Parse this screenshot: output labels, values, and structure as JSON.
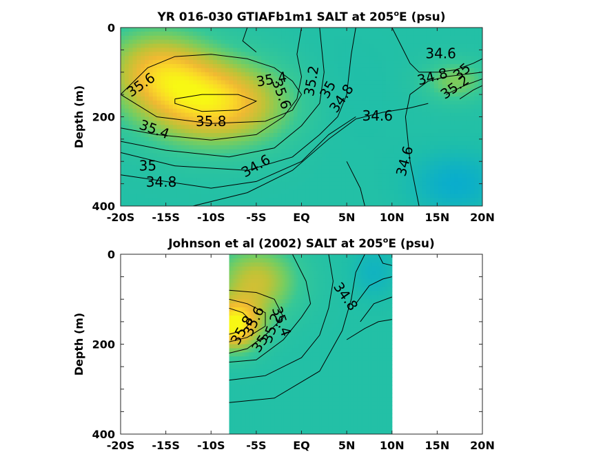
{
  "chart_data": [
    {
      "type": "heatmap",
      "title_main": "YR 016-030 GTIAFb1m1 SALT at 205",
      "title_sup": "o",
      "title_tail": "E (psu)",
      "ylabel": "Depth (m)",
      "xlabel": "",
      "xlim": [
        -20,
        20
      ],
      "ylim": [
        0,
        400
      ],
      "x_ticks": [
        {
          "value": -20,
          "label": "-20S"
        },
        {
          "value": -15,
          "label": "-15S"
        },
        {
          "value": -10,
          "label": "-10S"
        },
        {
          "value": -5,
          "label": "-5S"
        },
        {
          "value": 0,
          "label": "EQ"
        },
        {
          "value": 5,
          "label": "5N"
        },
        {
          "value": 10,
          "label": "10N"
        },
        {
          "value": 15,
          "label": "15N"
        },
        {
          "value": 20,
          "label": "20N"
        }
      ],
      "y_ticks": [
        {
          "value": 0,
          "label": "0"
        },
        {
          "value": 200,
          "label": "200"
        },
        {
          "value": 400,
          "label": "400"
        }
      ],
      "data_extent": [
        -20,
        20
      ],
      "salinity_blobs": [
        {
          "lat": -9.5,
          "depth": 170,
          "value": 35.85,
          "spread_lat": 8,
          "spread_depth": 95
        },
        {
          "lat": -16,
          "depth": 90,
          "value": 35.55,
          "spread_lat": 6,
          "spread_depth": 90
        },
        {
          "lat": 4,
          "depth": 150,
          "value": 34.72,
          "spread_lat": 6,
          "spread_depth": 130
        },
        {
          "lat": 17,
          "depth": 120,
          "value": 35.25,
          "spread_lat": 3.5,
          "spread_depth": 45
        },
        {
          "lat": 17,
          "depth": 350,
          "value": 34.45,
          "spread_lat": 5,
          "spread_depth": 70
        }
      ],
      "contour_labels": [
        {
          "text": "35.6",
          "lat": -17.7,
          "depth": 130,
          "rotate": -35
        },
        {
          "text": "35.8",
          "lat": -10,
          "depth": 212,
          "rotate": 0
        },
        {
          "text": "35.4",
          "lat": -16.3,
          "depth": 230,
          "rotate": 20
        },
        {
          "text": "35",
          "lat": -17,
          "depth": 312,
          "rotate": 0
        },
        {
          "text": "34.8",
          "lat": -15.5,
          "depth": 348,
          "rotate": 0
        },
        {
          "text": "35.4",
          "lat": -3.3,
          "depth": 118,
          "rotate": -10
        },
        {
          "text": "35.6",
          "lat": -2.3,
          "depth": 150,
          "rotate": 70
        },
        {
          "text": "35.2",
          "lat": 1.2,
          "depth": 120,
          "rotate": -80
        },
        {
          "text": "35",
          "lat": 3,
          "depth": 140,
          "rotate": -60
        },
        {
          "text": "34.8",
          "lat": 4.5,
          "depth": 160,
          "rotate": -55
        },
        {
          "text": "34.6",
          "lat": -5,
          "depth": 312,
          "rotate": -30
        },
        {
          "text": "34.6",
          "lat": 8.4,
          "depth": 200,
          "rotate": 0
        },
        {
          "text": "34.6",
          "lat": 15.4,
          "depth": 60,
          "rotate": 0
        },
        {
          "text": "34.8",
          "lat": 14.5,
          "depth": 112,
          "rotate": -15
        },
        {
          "text": "35",
          "lat": 17.8,
          "depth": 100,
          "rotate": -40
        },
        {
          "text": "35.2",
          "lat": 17,
          "depth": 135,
          "rotate": -35
        },
        {
          "text": "34.6",
          "lat": 11.5,
          "depth": 300,
          "rotate": -75
        }
      ],
      "contour_lines": [
        [
          [
            -20,
            150
          ],
          [
            -17,
            90
          ],
          [
            -14,
            65
          ],
          [
            -10,
            60
          ],
          [
            -6,
            70
          ],
          [
            -3,
            90
          ],
          [
            -1,
            120
          ],
          [
            0,
            150
          ],
          [
            -1,
            185
          ],
          [
            -4,
            210
          ],
          [
            -10,
            215
          ],
          [
            -16,
            200
          ],
          [
            -20,
            150
          ]
        ],
        [
          [
            -14,
            160
          ],
          [
            -11,
            150
          ],
          [
            -7,
            150
          ],
          [
            -5,
            165
          ],
          [
            -7,
            185
          ],
          [
            -11,
            188
          ],
          [
            -14,
            170
          ],
          [
            -14,
            160
          ]
        ],
        [
          [
            -20,
            225
          ],
          [
            -16,
            240
          ],
          [
            -10,
            252
          ],
          [
            -5,
            240
          ],
          [
            -2,
            200
          ],
          [
            -0.5,
            160
          ],
          [
            0,
            110
          ],
          [
            -0.5,
            60
          ],
          [
            0,
            0
          ]
        ],
        [
          [
            -20,
            255
          ],
          [
            -15,
            275
          ],
          [
            -8,
            290
          ],
          [
            -3,
            270
          ],
          [
            0,
            220
          ],
          [
            2,
            170
          ],
          [
            2.5,
            100
          ],
          [
            2,
            0
          ]
        ],
        [
          [
            -20,
            280
          ],
          [
            -14,
            310
          ],
          [
            -6,
            320
          ],
          [
            -1,
            290
          ],
          [
            2,
            240
          ],
          [
            4,
            200
          ],
          [
            5,
            150
          ],
          [
            5.5,
            60
          ],
          [
            6,
            0
          ]
        ],
        [
          [
            -20,
            330
          ],
          [
            -15,
            345
          ],
          [
            -10,
            360
          ],
          [
            -5,
            345
          ],
          [
            0,
            300
          ],
          [
            3,
            240
          ],
          [
            6,
            200
          ]
        ],
        [
          [
            -12,
            400
          ],
          [
            -6,
            370
          ],
          [
            -1,
            320
          ],
          [
            3,
            250
          ],
          [
            6,
            205
          ],
          [
            9,
            190
          ],
          [
            12,
            180
          ],
          [
            14,
            170
          ]
        ],
        [
          [
            10,
            0
          ],
          [
            11,
            40
          ],
          [
            12,
            80
          ],
          [
            13,
            100
          ],
          [
            15,
            100
          ],
          [
            17,
            95
          ],
          [
            19,
            80
          ],
          [
            20,
            70
          ]
        ],
        [
          [
            13,
            400
          ],
          [
            12,
            300
          ],
          [
            11.5,
            200
          ],
          [
            12,
            150
          ],
          [
            14,
            120
          ],
          [
            16,
            110
          ],
          [
            18,
            105
          ],
          [
            20,
            100
          ]
        ],
        [
          [
            16,
            150
          ],
          [
            18,
            130
          ],
          [
            20,
            115
          ]
        ],
        [
          [
            17.5,
            160
          ],
          [
            19,
            140
          ],
          [
            20,
            130
          ]
        ],
        [
          [
            -6,
            0
          ],
          [
            -6.5,
            30
          ],
          [
            -5,
            55
          ]
        ],
        [
          [
            5,
            300
          ],
          [
            6.5,
            360
          ],
          [
            7,
            400
          ]
        ]
      ]
    },
    {
      "type": "heatmap",
      "title_main": "Johnson et al (2002) SALT at 205",
      "title_sup": "o",
      "title_tail": "E (psu)",
      "ylabel": "Depth (m)",
      "xlabel": "",
      "xlim": [
        -20,
        20
      ],
      "ylim": [
        0,
        400
      ],
      "x_ticks": [
        {
          "value": -20,
          "label": "-20S"
        },
        {
          "value": -15,
          "label": "-15S"
        },
        {
          "value": -10,
          "label": "-10S"
        },
        {
          "value": -5,
          "label": "-5S"
        },
        {
          "value": 0,
          "label": "EQ"
        },
        {
          "value": 5,
          "label": "5N"
        },
        {
          "value": 10,
          "label": "10N"
        },
        {
          "value": 15,
          "label": "15N"
        },
        {
          "value": 20,
          "label": "20N"
        }
      ],
      "y_ticks": [
        {
          "value": 0,
          "label": "0"
        },
        {
          "value": 200,
          "label": "200"
        },
        {
          "value": 400,
          "label": "400"
        }
      ],
      "data_extent": [
        -8,
        10
      ],
      "salinity_blobs": [
        {
          "lat": -7.5,
          "depth": 160,
          "value": 35.95,
          "spread_lat": 3,
          "spread_depth": 55
        },
        {
          "lat": -5,
          "depth": 60,
          "value": 35.5,
          "spread_lat": 4.5,
          "spread_depth": 80
        },
        {
          "lat": 8,
          "depth": 40,
          "value": 34.55,
          "spread_lat": 2.5,
          "spread_depth": 60
        }
      ],
      "contour_labels": [
        {
          "text": "34.8",
          "lat": 4.8,
          "depth": 95,
          "rotate": 55
        },
        {
          "text": "35.4",
          "lat": -2.3,
          "depth": 150,
          "rotate": 70
        },
        {
          "text": "35.2",
          "lat": -3.2,
          "depth": 165,
          "rotate": -70
        },
        {
          "text": "35",
          "lat": -4.5,
          "depth": 200,
          "rotate": -55
        },
        {
          "text": "35.6",
          "lat": -5.2,
          "depth": 150,
          "rotate": -65
        },
        {
          "text": "35.8",
          "lat": -6.5,
          "depth": 170,
          "rotate": -60
        }
      ],
      "contour_lines": [
        [
          [
            -8,
            80
          ],
          [
            -5,
            85
          ],
          [
            -3,
            100
          ],
          [
            -2,
            140
          ],
          [
            -4,
            180
          ],
          [
            -6,
            210
          ],
          [
            -8,
            220
          ]
        ],
        [
          [
            -8,
            100
          ],
          [
            -6,
            110
          ],
          [
            -4,
            130
          ],
          [
            -4,
            160
          ],
          [
            -6,
            185
          ],
          [
            -8,
            195
          ]
        ],
        [
          [
            -8,
            120
          ],
          [
            -6.5,
            130
          ],
          [
            -5.5,
            150
          ],
          [
            -6.5,
            170
          ],
          [
            -8,
            178
          ]
        ],
        [
          [
            -8,
            240
          ],
          [
            -5,
            235
          ],
          [
            -2,
            190
          ],
          [
            0,
            140
          ],
          [
            1,
            110
          ],
          [
            0.5,
            60
          ],
          [
            -1,
            0
          ]
        ],
        [
          [
            -8,
            280
          ],
          [
            -4,
            270
          ],
          [
            0,
            230
          ],
          [
            2,
            180
          ],
          [
            3,
            120
          ],
          [
            3.5,
            60
          ],
          [
            3,
            0
          ]
        ],
        [
          [
            -8,
            330
          ],
          [
            -3,
            320
          ],
          [
            2,
            260
          ],
          [
            4.5,
            170
          ],
          [
            5.5,
            100
          ],
          [
            6,
            40
          ],
          [
            7,
            0
          ]
        ],
        [
          [
            6,
            110
          ],
          [
            7.5,
            70
          ],
          [
            9,
            55
          ],
          [
            10,
            50
          ]
        ],
        [
          [
            6.5,
            150
          ],
          [
            8,
            110
          ],
          [
            10,
            95
          ]
        ],
        [
          [
            5,
            190
          ],
          [
            7,
            165
          ],
          [
            8.5,
            150
          ],
          [
            10,
            145
          ]
        ],
        [
          [
            8.5,
            0
          ],
          [
            9,
            20
          ],
          [
            10,
            25
          ]
        ]
      ]
    }
  ]
}
